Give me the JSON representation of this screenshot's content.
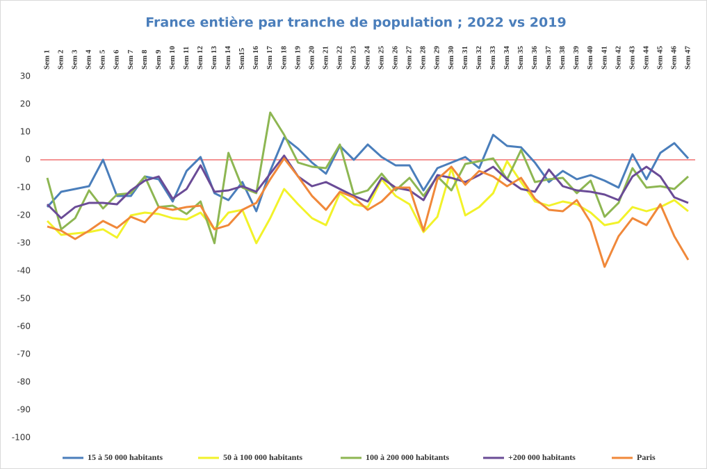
{
  "chart_data": {
    "type": "line",
    "title": "France entière par tranche de population ; 2022 vs 2019",
    "categories": [
      "Sem 1",
      "Sem 2",
      "Sem 3",
      "Sem 4",
      "Sem 5",
      "Sem 6",
      "Sem 7",
      "Sem 8",
      "Sem 9",
      "Sem 10",
      "Sem 11",
      "Sem 12",
      "Sem 13",
      "Sem 14",
      "Sem15",
      "Sem 16",
      "Sem 17",
      "Sem 18",
      "Sem 19",
      "Sem 20",
      "Sem 21",
      "Sem 22",
      "Sem 23",
      "Sem 24",
      "Sem 25",
      "Sem 26",
      "Sem 27",
      "Sem 28",
      "Sem 29",
      "Sem 30",
      "Sem 31",
      "Sem 32",
      "Sem 33",
      "Sem 34",
      "Sem 35",
      "Sem 36",
      "Sem 37",
      "Sem 38",
      "Sem 39",
      "Sem 40",
      "Sem 41",
      "Sem 42",
      "Sem 43",
      "Sem 44",
      "Sem 45",
      "Sem 46",
      "Sem 47"
    ],
    "series": [
      {
        "name": "15 à 50 000 habitants",
        "color": "#4a7ebb",
        "values": [
          -17,
          -11.5,
          -10.5,
          -9.5,
          0,
          -13,
          -13,
          -6,
          -7,
          -15,
          -4,
          1,
          -12,
          -14.5,
          -8,
          -18.5,
          -4,
          8,
          4,
          -1,
          -5,
          5,
          0,
          5.5,
          1,
          -2,
          -2,
          -11,
          -3,
          -1,
          1,
          -3,
          9,
          5,
          4.5,
          -1,
          -8,
          -4,
          -7,
          -5.5,
          -7.5,
          -10,
          2,
          -7,
          2.5,
          6,
          0.5
        ]
      },
      {
        "name": "50 à 100 000 habitants",
        "color": "#f2f22a",
        "values": [
          -22,
          -27,
          -26.5,
          -26,
          -25,
          -28,
          -20,
          -19,
          -19.5,
          -21,
          -21.5,
          -19,
          -25,
          -19,
          -18,
          -30,
          -21,
          -10.5,
          -16,
          -21,
          -23.5,
          -12,
          -16,
          -17,
          -7,
          -13,
          -16,
          -26,
          -20.5,
          -3,
          -20,
          -17,
          -12,
          -0.5,
          -8,
          -15,
          -16.5,
          -15,
          -16,
          -19,
          -23.5,
          -22.5,
          -17,
          -18.5,
          -17,
          -14.5,
          -18.5
        ]
      },
      {
        "name": "100 à 200 000 habitants",
        "color": "#8db652",
        "values": [
          -6.5,
          -25,
          -21,
          -11,
          -17.5,
          -12.5,
          -12,
          -6,
          -17,
          -16.5,
          -19.5,
          -15,
          -30,
          2.5,
          -10,
          -12,
          17,
          9,
          -1,
          -2.5,
          -3,
          5.5,
          -12.5,
          -11,
          -5,
          -11,
          -6.5,
          -13,
          -6,
          -11,
          -1.5,
          -0.5,
          0.5,
          -7,
          3.5,
          -8,
          -7,
          -6.5,
          -12,
          -7.5,
          -20.5,
          -15.5,
          -3,
          -10,
          -9.5,
          -10.5,
          -6
        ]
      },
      {
        "name": "+200 000 habitants",
        "color": "#6a4b96",
        "values": [
          -16,
          -21,
          -17,
          -15.5,
          -15.5,
          -16,
          -11,
          -7.5,
          -6,
          -14,
          -10.5,
          -2,
          -11.5,
          -11,
          -9.5,
          -11.5,
          -5,
          1.5,
          -6,
          -9.5,
          -8,
          -10.5,
          -13,
          -15,
          -6.5,
          -10,
          -11,
          -14.5,
          -5.5,
          -6.5,
          -8,
          -5.5,
          -2.5,
          -7,
          -10.5,
          -11.5,
          -3.5,
          -9.5,
          -11,
          -11.5,
          -12.5,
          -14.5,
          -6,
          -2.5,
          -6,
          -13.5,
          -15.5
        ]
      },
      {
        "name": "Paris",
        "color": "#f0883a",
        "values": [
          -24,
          -25.5,
          -28.5,
          -25.5,
          -22,
          -24.5,
          -20.5,
          -22.5,
          -17,
          -18,
          -17,
          -16.5,
          -25,
          -23.5,
          -18,
          -15.5,
          -7,
          0.5,
          -6,
          -13,
          -18,
          -11.5,
          -13.5,
          -18,
          -15,
          -10,
          -10,
          -25.5,
          -7,
          -2.5,
          -9,
          -4,
          -6,
          -9.5,
          -6.5,
          -14,
          -18,
          -18.5,
          -14.5,
          -22.5,
          -38.5,
          -27.5,
          -21,
          -23.5,
          -16,
          -27.5,
          -36
        ]
      }
    ],
    "ylim": [
      -100,
      30
    ],
    "yticks": [
      -100,
      -90,
      -80,
      -70,
      -60,
      -50,
      -40,
      -30,
      -20,
      -10,
      0,
      10,
      20,
      30
    ],
    "zero_line_color": "#f07070",
    "grid": false,
    "legend": "bottom"
  }
}
